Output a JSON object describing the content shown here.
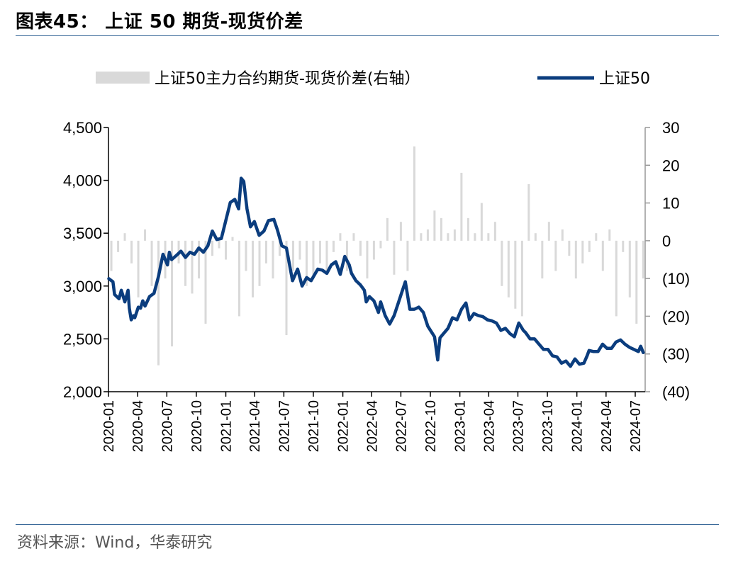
{
  "title": "图表45： 上证 50 期货-现货价差",
  "source": "资料来源：Wind，华泰研究",
  "colors": {
    "line": "#0b3d7e",
    "bars": "#d9d9d9",
    "rule": "#3b6a9a"
  },
  "chart_data": {
    "type": "line+bar",
    "legend_position": "top",
    "series": [
      {
        "name": "上证50主力合约期货-现货价差(右轴）",
        "type": "bar",
        "axis": "right",
        "x": [
          "2020-01-10",
          "2020-01-31",
          "2020-02-21",
          "2020-03-13",
          "2020-04-03",
          "2020-04-24",
          "2020-05-15",
          "2020-06-05",
          "2020-06-26",
          "2020-07-17",
          "2020-08-07",
          "2020-08-28",
          "2020-09-18",
          "2020-10-09",
          "2020-10-30",
          "2020-11-20",
          "2020-12-11",
          "2021-01-01",
          "2021-01-22",
          "2021-02-12",
          "2021-03-05",
          "2021-03-26",
          "2021-04-16",
          "2021-05-07",
          "2021-05-28",
          "2021-06-18",
          "2021-07-09",
          "2021-07-30",
          "2021-08-20",
          "2021-09-10",
          "2021-10-01",
          "2021-10-22",
          "2021-11-12",
          "2021-12-03",
          "2021-12-24",
          "2022-01-14",
          "2022-02-04",
          "2022-02-25",
          "2022-03-18",
          "2022-04-08",
          "2022-04-29",
          "2022-05-20",
          "2022-06-10",
          "2022-07-01",
          "2022-07-22",
          "2022-08-12",
          "2022-09-02",
          "2022-09-23",
          "2022-10-14",
          "2022-11-04",
          "2022-11-25",
          "2022-12-16",
          "2023-01-06",
          "2023-01-27",
          "2023-02-17",
          "2023-03-10",
          "2023-03-31",
          "2023-04-21",
          "2023-05-12",
          "2023-06-02",
          "2023-06-23",
          "2023-07-14",
          "2023-08-04",
          "2023-08-25",
          "2023-09-15",
          "2023-10-06",
          "2023-10-27",
          "2023-11-17",
          "2023-12-08",
          "2023-12-29",
          "2024-01-19",
          "2024-02-09",
          "2024-03-01",
          "2024-03-22",
          "2024-04-12",
          "2024-05-03",
          "2024-05-24",
          "2024-06-14",
          "2024-07-05",
          "2024-07-26"
        ],
        "values": [
          -8,
          -3,
          2,
          -6,
          -15,
          3,
          -12,
          -33,
          -10,
          -28,
          -6,
          -12,
          -14,
          -10,
          -22,
          -4,
          -2,
          -5,
          1,
          -20,
          -8,
          -15,
          -12,
          -6,
          -10,
          -4,
          -25,
          -8,
          -5,
          -12,
          -10,
          -6,
          -8,
          -3,
          2,
          -8,
          2,
          -4,
          -10,
          -5,
          -2,
          6,
          -9,
          5,
          -8,
          25,
          2,
          3,
          8,
          6,
          2,
          3,
          18,
          6,
          2,
          10,
          2,
          5,
          -12,
          -15,
          -18,
          -20,
          15,
          2,
          -10,
          5,
          -8,
          3,
          -4,
          -10,
          -6,
          -3,
          2,
          -8,
          3,
          -20,
          -3,
          -15,
          -22,
          -10
        ]
      },
      {
        "name": "上证50",
        "type": "line",
        "axis": "left",
        "x": [
          "2020-01-02",
          "2020-01-15",
          "2020-01-20",
          "2020-02-03",
          "2020-02-10",
          "2020-02-21",
          "2020-03-02",
          "2020-03-06",
          "2020-03-12",
          "2020-03-19",
          "2020-03-23",
          "2020-04-03",
          "2020-04-10",
          "2020-04-17",
          "2020-04-24",
          "2020-05-08",
          "2020-05-22",
          "2020-06-05",
          "2020-06-19",
          "2020-07-03",
          "2020-07-09",
          "2020-07-16",
          "2020-07-31",
          "2020-08-14",
          "2020-08-28",
          "2020-09-11",
          "2020-09-25",
          "2020-10-09",
          "2020-10-23",
          "2020-11-06",
          "2020-11-20",
          "2020-12-04",
          "2020-12-18",
          "2021-01-01",
          "2021-01-15",
          "2021-01-29",
          "2021-02-10",
          "2021-02-18",
          "2021-02-26",
          "2021-03-08",
          "2021-03-19",
          "2021-03-31",
          "2021-04-15",
          "2021-04-30",
          "2021-05-14",
          "2021-05-31",
          "2021-06-11",
          "2021-06-25",
          "2021-07-09",
          "2021-07-28",
          "2021-08-13",
          "2021-08-27",
          "2021-09-10",
          "2021-09-24",
          "2021-10-15",
          "2021-10-29",
          "2021-11-12",
          "2021-11-26",
          "2021-12-10",
          "2021-12-24",
          "2022-01-07",
          "2022-01-21",
          "2022-01-28",
          "2022-02-11",
          "2022-02-25",
          "2022-03-09",
          "2022-03-15",
          "2022-03-25",
          "2022-04-08",
          "2022-04-22",
          "2022-04-29",
          "2022-05-13",
          "2022-05-27",
          "2022-06-10",
          "2022-06-24",
          "2022-07-05",
          "2022-07-15",
          "2022-07-29",
          "2022-08-12",
          "2022-08-26",
          "2022-09-09",
          "2022-09-23",
          "2022-10-14",
          "2022-10-24",
          "2022-10-31",
          "2022-11-11",
          "2022-11-25",
          "2022-12-09",
          "2022-12-23",
          "2023-01-06",
          "2023-01-20",
          "2023-01-31",
          "2023-02-14",
          "2023-02-28",
          "2023-03-14",
          "2023-03-28",
          "2023-04-11",
          "2023-04-25",
          "2023-05-09",
          "2023-05-23",
          "2023-06-06",
          "2023-06-20",
          "2023-07-04",
          "2023-07-18",
          "2023-07-25",
          "2023-08-08",
          "2023-08-22",
          "2023-09-05",
          "2023-09-19",
          "2023-10-03",
          "2023-10-17",
          "2023-10-31",
          "2023-11-14",
          "2023-11-28",
          "2023-12-12",
          "2023-12-26",
          "2024-01-09",
          "2024-01-23",
          "2024-02-02",
          "2024-02-08",
          "2024-02-22",
          "2024-03-07",
          "2024-03-21",
          "2024-04-04",
          "2024-04-18",
          "2024-05-02",
          "2024-05-16",
          "2024-05-30",
          "2024-06-13",
          "2024-06-27",
          "2024-07-11",
          "2024-07-18",
          "2024-07-26"
        ],
        "values": [
          3070,
          3040,
          2920,
          2880,
          2960,
          2850,
          2960,
          2790,
          2680,
          2720,
          2700,
          2800,
          2790,
          2860,
          2810,
          2900,
          2930,
          3090,
          3300,
          3200,
          3320,
          3250,
          3290,
          3330,
          3270,
          3320,
          3300,
          3360,
          3320,
          3380,
          3520,
          3440,
          3450,
          3620,
          3790,
          3820,
          3730,
          4020,
          3990,
          3730,
          3560,
          3610,
          3480,
          3520,
          3620,
          3630,
          3530,
          3380,
          3360,
          3050,
          3160,
          3000,
          3080,
          3050,
          3160,
          3150,
          3120,
          3200,
          3230,
          3110,
          3280,
          3200,
          3120,
          3050,
          3010,
          2960,
          2850,
          2900,
          2860,
          2750,
          2850,
          2720,
          2640,
          2720,
          2850,
          2950,
          3040,
          2780,
          2780,
          2800,
          2750,
          2620,
          2520,
          2300,
          2510,
          2550,
          2600,
          2700,
          2680,
          2780,
          2840,
          2680,
          2740,
          2720,
          2710,
          2680,
          2670,
          2650,
          2580,
          2600,
          2550,
          2520,
          2650,
          2580,
          2560,
          2500,
          2500,
          2450,
          2400,
          2400,
          2340,
          2330,
          2270,
          2290,
          2240,
          2310,
          2260,
          2270,
          2340,
          2390,
          2380,
          2380,
          2450,
          2410,
          2410,
          2470,
          2490,
          2450,
          2420,
          2400,
          2380,
          2430,
          2370
        ]
      }
    ],
    "xlim": [
      "2020-01-01",
      "2024-08-01"
    ],
    "x_ticks": [
      "2020-01",
      "2020-04",
      "2020-07",
      "2020-10",
      "2021-01",
      "2021-04",
      "2021-07",
      "2021-10",
      "2022-01",
      "2022-04",
      "2022-07",
      "2022-10",
      "2023-01",
      "2023-04",
      "2023-07",
      "2023-10",
      "2024-01",
      "2024-04",
      "2024-07"
    ],
    "y_left": {
      "min": 2000,
      "max": 4500,
      "ticks": [
        "2,000",
        "2,500",
        "3,000",
        "3,500",
        "4,000",
        "4,500"
      ],
      "tick_values": [
        2000,
        2500,
        3000,
        3500,
        4000,
        4500
      ]
    },
    "y_right": {
      "min": -40,
      "max": 30,
      "ticks": [
        "(40)",
        "(30)",
        "(20)",
        "(10)",
        "0",
        "10",
        "20",
        "30"
      ],
      "tick_values": [
        -40,
        -30,
        -20,
        -10,
        0,
        10,
        20,
        30
      ]
    },
    "grid": false
  }
}
